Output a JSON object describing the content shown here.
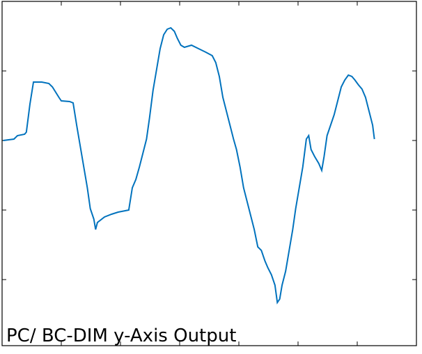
{
  "chart_data": {
    "type": "line",
    "title": "PC/ BC-DIM y-Axis Output",
    "x": [
      0.02,
      0.2,
      0.26,
      0.38,
      0.41,
      0.47,
      0.53,
      0.67,
      0.79,
      0.85,
      0.96,
      1.0,
      1.14,
      1.2,
      1.26,
      1.32,
      1.38,
      1.44,
      1.49,
      1.55,
      1.58,
      1.61,
      1.73,
      1.85,
      1.96,
      2.14,
      2.2,
      2.26,
      2.32,
      2.38,
      2.44,
      2.49,
      2.55,
      2.61,
      2.67,
      2.73,
      2.79,
      2.85,
      2.91,
      2.96,
      3.02,
      3.08,
      3.2,
      3.32,
      3.44,
      3.55,
      3.61,
      3.67,
      3.73,
      3.79,
      3.85,
      3.91,
      3.96,
      4.02,
      4.08,
      4.14,
      4.2,
      4.26,
      4.32,
      4.38,
      4.44,
      4.49,
      4.55,
      4.61,
      4.65,
      4.69,
      4.73,
      4.79,
      4.85,
      4.91,
      4.96,
      5.02,
      5.08,
      5.14,
      5.18,
      5.22,
      5.28,
      5.35,
      5.4,
      5.44,
      5.49,
      5.55,
      5.61,
      5.67,
      5.73,
      5.79,
      5.85,
      5.91,
      5.96,
      6.02,
      6.08,
      6.14,
      6.2,
      6.26,
      6.29
    ],
    "series": [
      {
        "color": "#0072bd",
        "values": [
          3.0,
          3.02,
          3.07,
          3.09,
          3.12,
          3.52,
          3.84,
          3.84,
          3.82,
          3.77,
          3.62,
          3.57,
          3.56,
          3.54,
          3.22,
          2.92,
          2.62,
          2.32,
          2.02,
          1.87,
          1.72,
          1.82,
          1.9,
          1.94,
          1.97,
          2.0,
          2.32,
          2.44,
          2.62,
          2.82,
          3.02,
          3.32,
          3.72,
          4.02,
          4.32,
          4.52,
          4.6,
          4.62,
          4.57,
          4.47,
          4.37,
          4.34,
          4.37,
          4.32,
          4.27,
          4.22,
          4.12,
          3.92,
          3.62,
          3.42,
          3.22,
          3.02,
          2.87,
          2.62,
          2.32,
          2.12,
          1.92,
          1.72,
          1.47,
          1.42,
          1.27,
          1.17,
          1.07,
          0.92,
          0.67,
          0.72,
          0.92,
          1.12,
          1.42,
          1.72,
          2.02,
          2.32,
          2.62,
          3.02,
          3.07,
          2.87,
          2.77,
          2.67,
          2.57,
          2.77,
          3.07,
          3.22,
          3.37,
          3.57,
          3.77,
          3.87,
          3.94,
          3.92,
          3.87,
          3.8,
          3.74,
          3.62,
          3.42,
          3.22,
          3.02
        ]
      }
    ],
    "xlim": [
      0,
      7
    ],
    "xticks": [
      1,
      2,
      3,
      4,
      5,
      6
    ],
    "ylim": [
      0.05,
      5
    ],
    "yticks": [
      1,
      2,
      3,
      4
    ]
  }
}
